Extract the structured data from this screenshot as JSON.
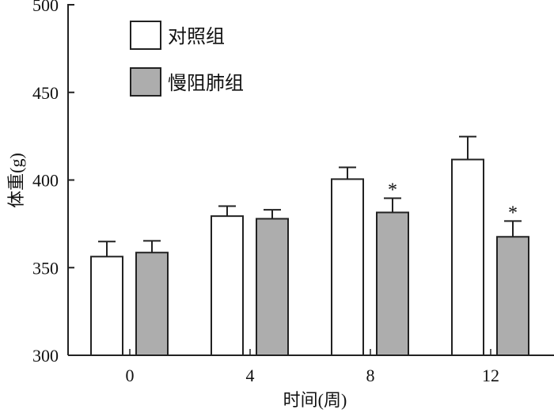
{
  "chart_data": {
    "type": "bar",
    "title": "",
    "xlabel": "时间(周)",
    "ylabel": "体重(g)",
    "ylim": [
      300,
      500
    ],
    "yticks": [
      "300",
      "350",
      "400",
      "450",
      "500"
    ],
    "categories": [
      "0",
      "4",
      "8",
      "12"
    ],
    "legend_position": "top-left",
    "series": [
      {
        "name": "对照组",
        "color": "#ffffff",
        "values": [
          356.3,
          379.4,
          400.5,
          411.7
        ],
        "error": [
          8.6,
          5.7,
          6.7,
          13.1
        ],
        "significance": [
          "",
          "",
          "",
          ""
        ]
      },
      {
        "name": "慢阻肺组",
        "color": "#adadad",
        "values": [
          358.6,
          377.9,
          381.5,
          367.6
        ],
        "error": [
          6.7,
          5.1,
          8.1,
          9.0
        ],
        "significance": [
          "",
          "",
          "*",
          "*"
        ]
      }
    ]
  }
}
